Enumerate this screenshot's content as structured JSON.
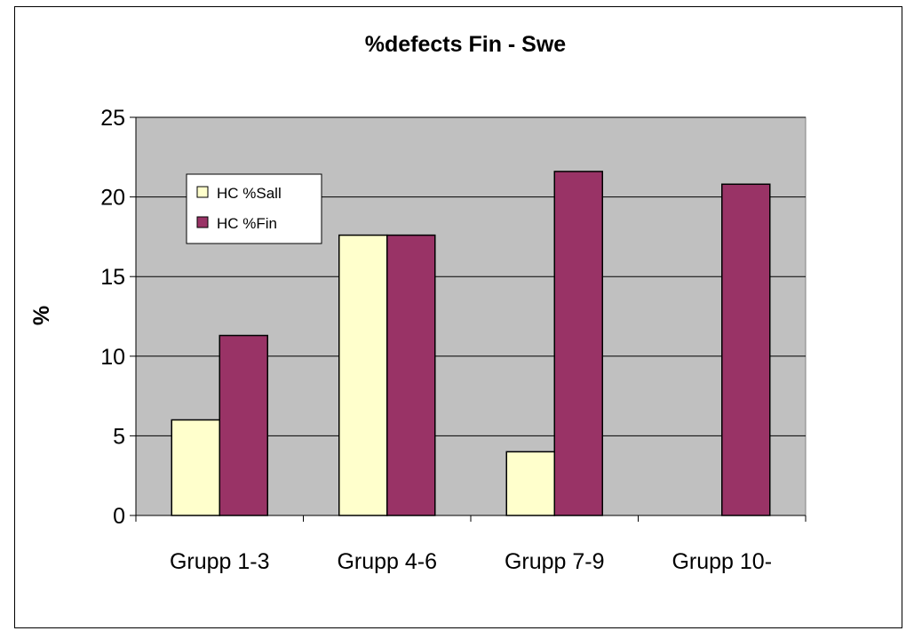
{
  "chart_data": {
    "type": "bar",
    "title": "%defects Fin - Swe",
    "xlabel": "",
    "ylabel": "%",
    "categories": [
      "Grupp 1-3",
      "Grupp 4-6",
      "Grupp 7-9",
      "Grupp 10-"
    ],
    "series": [
      {
        "name": "HC %Sall",
        "values": [
          6,
          17.6,
          4,
          0
        ],
        "color": "#ffffcc"
      },
      {
        "name": "HC %Fin",
        "values": [
          11.3,
          17.6,
          21.6,
          20.8
        ],
        "color": "#993366"
      }
    ],
    "ylim": [
      0,
      25
    ],
    "yticks": [
      "0",
      "5",
      "10",
      "15",
      "20",
      "25"
    ],
    "grid": true,
    "plot_background": "#c0c0c0",
    "legend_position": "inside-top-left"
  }
}
